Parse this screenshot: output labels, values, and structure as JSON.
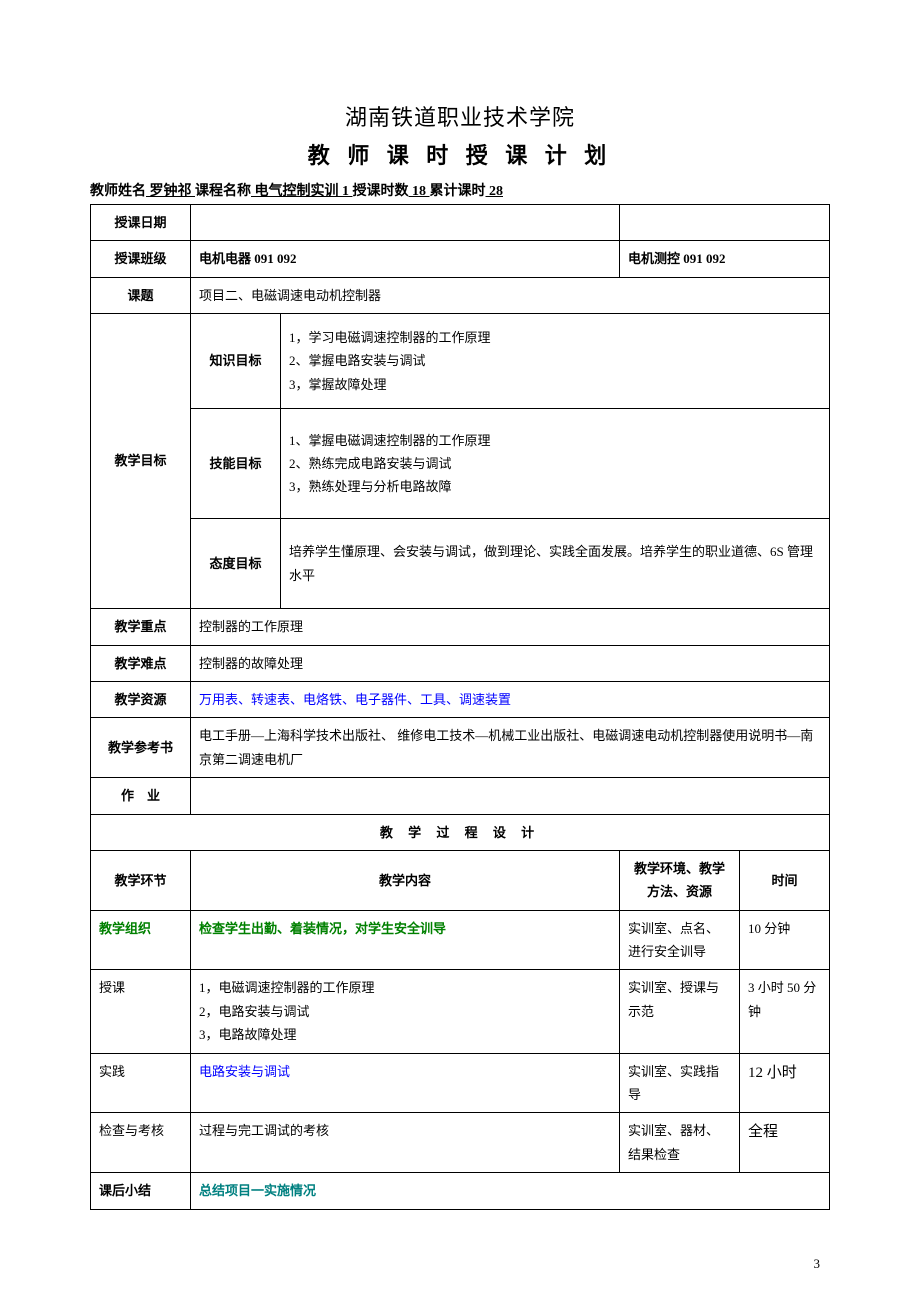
{
  "titles": {
    "school": "湖南铁道职业技术学院",
    "doc": "教 师 课 时 授 课 计 划"
  },
  "header": {
    "label_teacher": "教师姓名",
    "teacher": " 罗钟祁 ",
    "label_course": "课程名称",
    "course": " 电气控制实训 1 ",
    "label_hours": "授课时数",
    "hours": " 18 ",
    "label_total": "累计课时",
    "total": " 28 "
  },
  "labels": {
    "date": "授课日期",
    "class": "授课班级",
    "topic": "课题",
    "goal": "教学目标",
    "knowledge": "知识目标",
    "skill": "技能目标",
    "attitude": "态度目标",
    "focus": "教学重点",
    "difficulty": "教学难点",
    "resource": "教学资源",
    "reference": "教学参考书",
    "homework": "作　业",
    "process": "教 学 过 程 设 计",
    "stage": "教学环节",
    "content": "教学内容",
    "env": "教学环境、教学方法、资源",
    "time": "时间",
    "summary": "课后小结"
  },
  "values": {
    "class1": "电机电器 091 092",
    "class2": "电机测控 091 092",
    "topic": "项目二、电磁调速电动机控制器",
    "knowledge": "1，学习电磁调速控制器的工作原理\n2、掌握电路安装与调试\n3，掌握故障处理",
    "skill": "1、掌握电磁调速控制器的工作原理\n2、熟练完成电路安装与调试\n3，熟练处理与分析电路故障",
    "attitude": "培养学生懂原理、会安装与调试，做到理论、实践全面发展。培养学生的职业道德、6S 管理水平",
    "focus": "控制器的工作原理",
    "difficulty": "控制器的故障处理",
    "resource": "万用表、转速表、电烙铁、电子器件、工具、调速装置",
    "reference": "电工手册—上海科学技术出版社、 维修电工技术—机械工业出版社、电磁调速电动机控制器使用说明书—南京第二调速电机厂"
  },
  "process": {
    "rows": [
      {
        "stage": "教学组织",
        "stage_class": "green",
        "content": "检查学生出勤、着装情况，对学生安全训导",
        "content_class": "green",
        "env": "实训室、点名、进行安全训导",
        "time": "10 分钟"
      },
      {
        "stage": "授课",
        "stage_class": "",
        "content": "1，电磁调速控制器的工作原理\n2，电路安装与调试\n3，电路故障处理",
        "content_class": "",
        "env": "实训室、授课与示范",
        "time": "3 小时 50 分钟"
      },
      {
        "stage": "实践",
        "stage_class": "",
        "content": "电路安装与调试",
        "content_class": "blue",
        "env": "实训室、实践指导",
        "time": "12 小时",
        "time_large": true
      },
      {
        "stage": "检查与考核",
        "stage_class": "",
        "content": "过程与完工调试的考核",
        "content_class": "",
        "env": "实训室、器材、结果检查",
        "time": "全程",
        "time_large": true
      }
    ],
    "summary": "总结项目一实施情况"
  },
  "page": "3"
}
